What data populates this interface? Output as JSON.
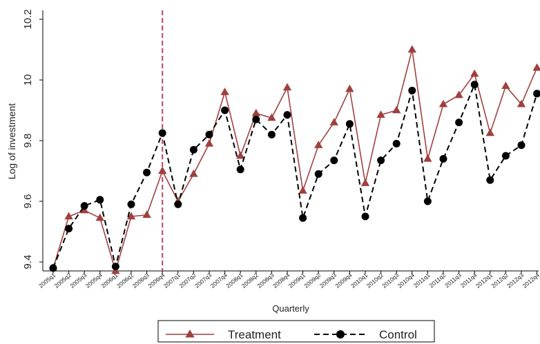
{
  "chart_data": {
    "type": "line",
    "xlabel": "Quarterly",
    "ylabel": "Log of investment",
    "ylim": [
      9.35,
      10.2
    ],
    "yticks": [
      9.4,
      9.6,
      9.8,
      10,
      10.2
    ],
    "yticklabels": [
      "9.4",
      "9.6",
      "9.8",
      "10",
      "10.2"
    ],
    "categories": [
      "2005q1",
      "2005q2",
      "2005q3",
      "2005q4",
      "2006q1",
      "2006q2",
      "2006q3",
      "2006q4",
      "2007q1",
      "2007q2",
      "2007q3",
      "2007q4",
      "2008q1",
      "2008q2",
      "2008q3",
      "2008q4",
      "2009q1",
      "2009q2",
      "2009q3",
      "2009q4",
      "2010q1",
      "2010q2",
      "2010q3",
      "2010q4",
      "2011q1",
      "2011q2",
      "2011q3",
      "2011q4",
      "2012q1",
      "2012q2",
      "2012q3",
      "2012q4"
    ],
    "series": [
      {
        "name": "Treatment",
        "color": "#a0403e",
        "marker": "triangle",
        "line_style": "solid",
        "values": [
          9.38,
          9.55,
          9.57,
          9.545,
          9.37,
          9.55,
          9.555,
          9.7,
          9.6,
          9.69,
          9.79,
          9.96,
          9.75,
          9.89,
          9.875,
          9.975,
          9.635,
          9.785,
          9.86,
          9.97,
          9.66,
          9.885,
          9.9,
          10.1,
          9.74,
          9.92,
          9.95,
          10.02,
          9.825,
          9.98,
          9.92,
          10.04
        ]
      },
      {
        "name": "Control",
        "color": "#000000",
        "marker": "circle",
        "line_style": "dashed",
        "values": [
          9.38,
          9.51,
          9.585,
          9.605,
          9.385,
          9.59,
          9.695,
          9.825,
          9.59,
          9.77,
          9.82,
          9.9,
          9.705,
          9.87,
          9.82,
          9.885,
          9.545,
          9.69,
          9.735,
          9.855,
          9.55,
          9.735,
          9.79,
          9.965,
          9.6,
          9.74,
          9.86,
          9.985,
          9.67,
          9.75,
          9.785,
          9.955
        ]
      }
    ],
    "reference_line": {
      "category": "2006q4",
      "color": "#c0405e",
      "style": "dashed"
    },
    "grid": false,
    "legend": {
      "placement": "bottom-center"
    }
  }
}
